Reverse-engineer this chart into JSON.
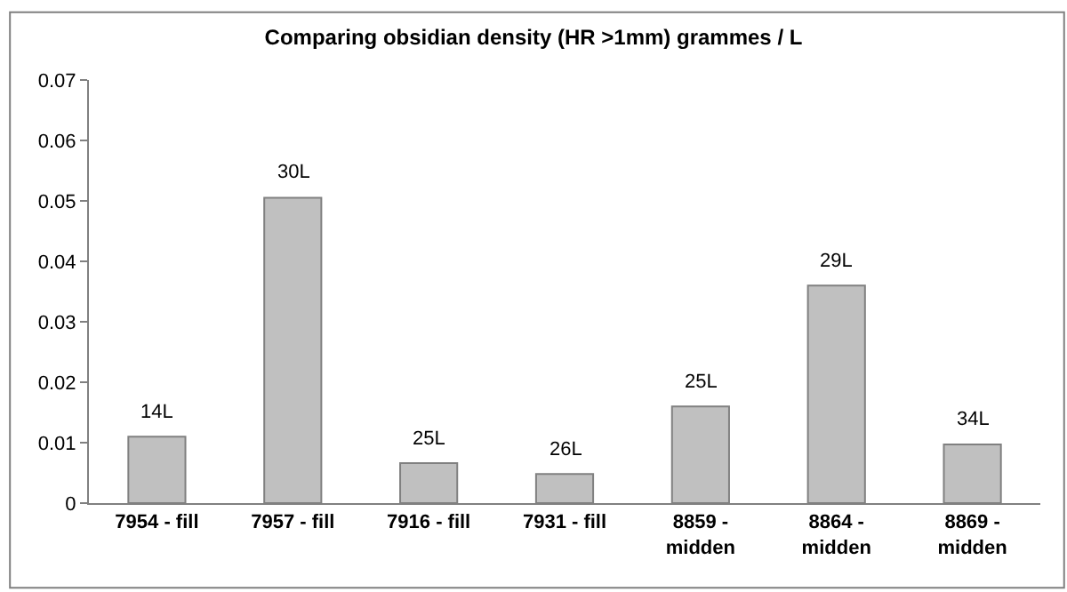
{
  "chart_data": {
    "type": "bar",
    "title": "Comparing obsidian density (HR >1mm) grammes / L",
    "categories": [
      "7954 - fill",
      "7957 - fill",
      "7916 - fill",
      "7931 - fill",
      "8859 - midden",
      "8864 - midden",
      "8869 - midden"
    ],
    "values": [
      0.011,
      0.0505,
      0.0066,
      0.0048,
      0.016,
      0.036,
      0.0097
    ],
    "annotations": [
      {
        "text": "14L",
        "x": "7954 - fill",
        "y": 0.011
      },
      {
        "text": "30L",
        "x": "7957 - fill",
        "y": 0.0505
      },
      {
        "text": "25L",
        "x": "7916 - fill",
        "y": 0.0066
      },
      {
        "text": "26L",
        "x": "7931 - fill",
        "y": 0.0048
      },
      {
        "text": "25L",
        "x": "8859 - midden",
        "y": 0.016
      },
      {
        "text": "29L",
        "x": "8864 - midden",
        "y": 0.036
      },
      {
        "text": "34L",
        "x": "8869 - midden",
        "y": 0.0097
      }
    ],
    "color": "#c0c0c0",
    "ylim": [
      0,
      0.07
    ],
    "yticks": [
      0,
      0.01,
      0.02,
      0.03,
      0.04,
      0.05,
      0.06,
      0.07
    ]
  }
}
